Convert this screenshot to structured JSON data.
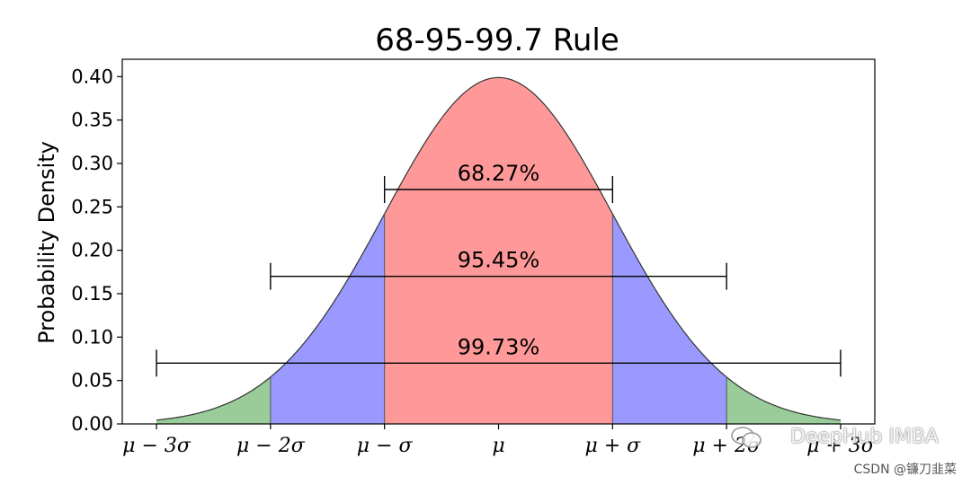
{
  "chart_data": {
    "type": "area",
    "title": "68-95-99.7 Rule",
    "xlabel": "",
    "ylabel": "Probability Density",
    "xlim": [
      -3.3,
      3.3
    ],
    "ylim": [
      0,
      0.42
    ],
    "yticks": [
      "0.00",
      "0.05",
      "0.10",
      "0.15",
      "0.20",
      "0.25",
      "0.30",
      "0.35",
      "0.40"
    ],
    "xticks": [
      {
        "value": -3,
        "label": "μ − 3σ"
      },
      {
        "value": -2,
        "label": "μ − 2σ"
      },
      {
        "value": -1,
        "label": "μ − σ"
      },
      {
        "value": 0,
        "label": "μ"
      },
      {
        "value": 1,
        "label": "μ + σ"
      },
      {
        "value": 2,
        "label": "μ + 2σ"
      },
      {
        "value": 3,
        "label": "μ + 3σ"
      }
    ],
    "curve": "standard normal density",
    "regions": [
      {
        "from": -1,
        "to": 1,
        "color": "#ff9999"
      },
      {
        "from": -2,
        "to": -1,
        "color": "#9999ff"
      },
      {
        "from": 1,
        "to": 2,
        "color": "#9999ff"
      },
      {
        "from": -3,
        "to": -2,
        "color": "#99cc99"
      },
      {
        "from": 2,
        "to": 3,
        "color": "#99cc99"
      }
    ],
    "intervals": [
      {
        "from": -1,
        "to": 1,
        "y": 0.27,
        "label": "68.27%"
      },
      {
        "from": -2,
        "to": 2,
        "y": 0.17,
        "label": "95.45%"
      },
      {
        "from": -3,
        "to": 3,
        "y": 0.07,
        "label": "99.73%"
      }
    ],
    "grid": false
  },
  "watermark": {
    "main": "DeepHub IMBA",
    "sub": "CSDN @镰刀韭菜"
  }
}
